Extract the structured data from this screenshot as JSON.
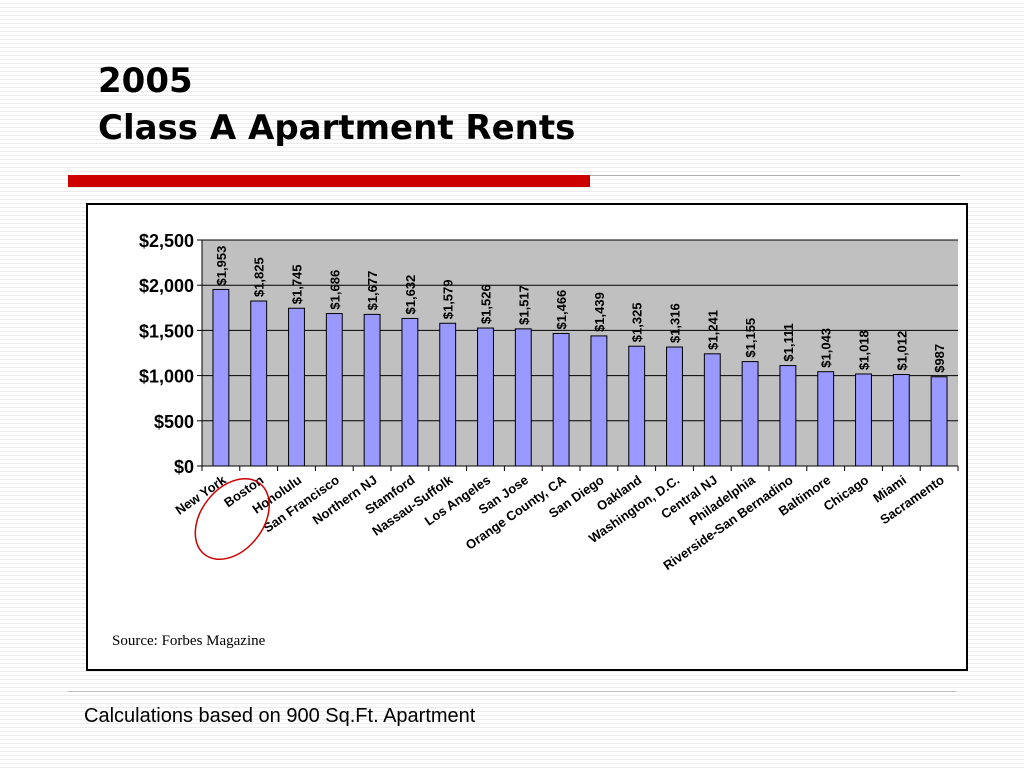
{
  "slide": {
    "title_line1": "2005",
    "title_line2": "Class A Apartment Rents",
    "footnote": "Calculations based on 900 Sq.Ft. Apartment",
    "source": "Source: Forbes Magazine"
  },
  "colors": {
    "accent_red": "#cc0000",
    "bar_fill": "#9999ff",
    "plot_background": "#c0c0c0",
    "highlight_circle": "#cc0000"
  },
  "chart_data": {
    "type": "bar",
    "categories": [
      "New York",
      "Boston",
      "Honolulu",
      "San Francisco",
      "Northern NJ",
      "Stamford",
      "Nassau-Suffolk",
      "Los Angeles",
      "San Jose",
      "Orange County, CA",
      "San Diego",
      "Oakland",
      "Washington, D.C.",
      "Central NJ",
      "Philadelphia",
      "Riverside-San Bernadino",
      "Baltimore",
      "Chicago",
      "Miami",
      "Sacramento"
    ],
    "values": [
      1953,
      1825,
      1745,
      1686,
      1677,
      1632,
      1579,
      1526,
      1517,
      1466,
      1439,
      1325,
      1316,
      1241,
      1155,
      1111,
      1043,
      1018,
      1012,
      987
    ],
    "data_labels": [
      "$1,953",
      "$1,825",
      "$1,745",
      "$1,686",
      "$1,677",
      "$1,632",
      "$1,579",
      "$1,526",
      "$1,517",
      "$1,466",
      "$1,439",
      "$1,325",
      "$1,316",
      "$1,241",
      "$1,155",
      "$1,111",
      "$1,043",
      "$1,018",
      "$1,012",
      "$987"
    ],
    "y_ticks": [
      0,
      500,
      1000,
      1500,
      2000,
      2500
    ],
    "y_tick_labels": [
      "$0",
      "$500",
      "$1,000",
      "$1,500",
      "$2,000",
      "$2,500"
    ],
    "ylim": [
      0,
      2500
    ],
    "grid": true,
    "legend": "none",
    "highlighted_categories": [
      "New York",
      "Boston"
    ]
  }
}
